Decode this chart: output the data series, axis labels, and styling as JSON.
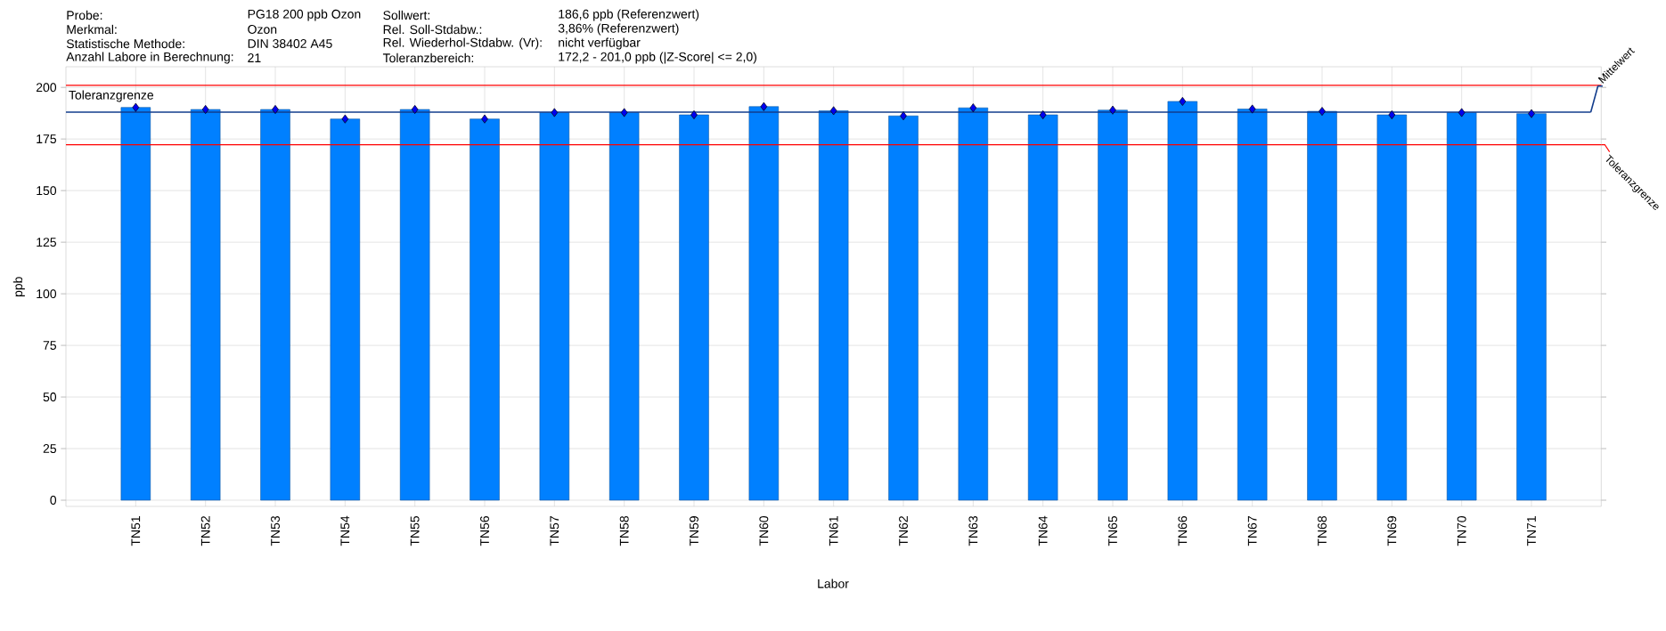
{
  "chart_data": {
    "type": "bar",
    "annotations": [
      "Probe:",
      "Merkmal:",
      "Statistische Methode:",
      "Anzahl Labore in Berechnung:",
      "PG18 200 ppb Ozon",
      "Ozon",
      "DIN 38402 A45",
      "21",
      "Sollwert:",
      "Rel. Soll-Stdabw.:",
      "Rel. Wiederhol-Stdabw. (Vr):",
      "Toleranzbereich:",
      "186,6 ppb (Referenzwert)",
      "3,86% (Referenzwert)",
      "nicht verfügbar",
      "172,2 - 201,0 ppb (|Z-Score| <= 2,0)"
    ],
    "xlabel": "Labor",
    "ylabel": "ppb",
    "categories": [
      "TN51",
      "TN52",
      "TN53",
      "TN54",
      "TN55",
      "TN56",
      "TN57",
      "TN58",
      "TN59",
      "TN60",
      "TN61",
      "TN62",
      "TN63",
      "TN64",
      "TN65",
      "TN66",
      "TN67",
      "TN68",
      "TN69",
      "TN70",
      "TN71"
    ],
    "series": [
      {
        "color": "#0080ff",
        "values": [
          190.3,
          189.3,
          189.3,
          184.7,
          189.3,
          184.7,
          187.8,
          187.8,
          186.7,
          190.7,
          188.7,
          186.2,
          190.1,
          186.7,
          189.0,
          193.2,
          189.5,
          188.4,
          186.7,
          187.8,
          187.3
        ]
      },
      {
        "type": "scatter",
        "color": "#0000ee",
        "x": [
          "TN51",
          "TN52",
          "TN53",
          "TN54",
          "TN55",
          "TN56",
          "TN57",
          "TN58",
          "TN59",
          "TN60",
          "TN61",
          "TN62",
          "TN63",
          "TN64",
          "TN65",
          "TN66",
          "TN67",
          "TN68",
          "TN69",
          "TN70",
          "TN71"
        ],
        "values": [
          190.3,
          189.3,
          189.3,
          184.7,
          189.3,
          184.7,
          187.8,
          187.8,
          186.7,
          190.7,
          188.7,
          186.2,
          190.1,
          186.7,
          189.0,
          193.2,
          189.5,
          188.4,
          186.7,
          187.8,
          187.3
        ]
      }
    ],
    "marker": "diamond",
    "ref_lines": [
      {
        "axis": "y",
        "value": 201.0,
        "label": "Toleranzgrenze",
        "color": "#ff0000"
      },
      {
        "axis": "y",
        "value": 188.0,
        "label": "Mittelwert",
        "color": "#123c8c"
      },
      {
        "axis": "y",
        "value": 172.2,
        "label": "Toleranzgrenze",
        "color": "#ff0000"
      }
    ],
    "ylim": [
      -3,
      210
    ],
    "yticks": [
      0,
      25,
      50,
      75,
      100,
      125,
      150,
      175,
      200
    ],
    "grid": true
  }
}
